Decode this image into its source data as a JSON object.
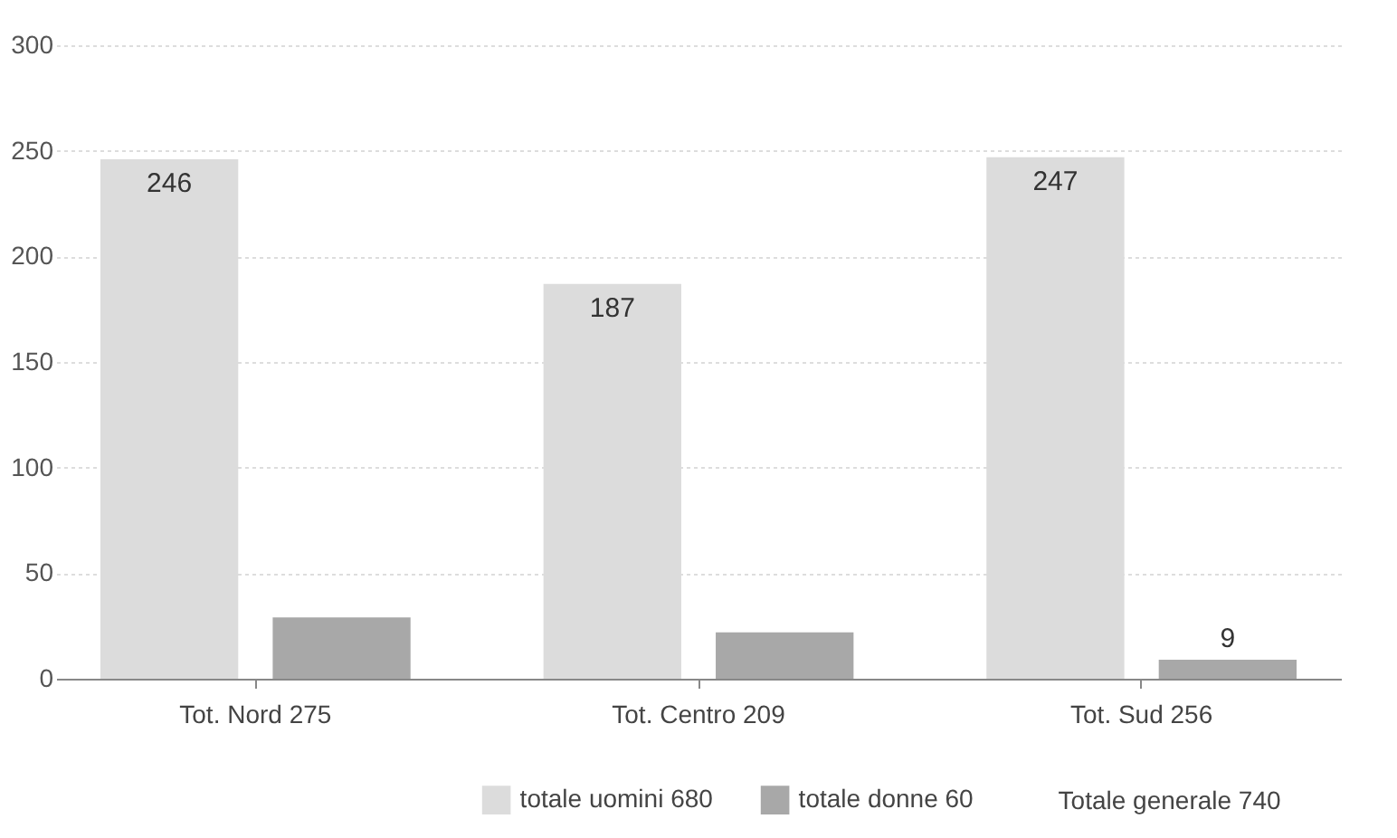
{
  "chart_data": {
    "type": "bar",
    "categories": [
      "Tot. Nord 275",
      "Tot. Centro 209",
      "Tot. Sud 256"
    ],
    "series": [
      {
        "name": "totale uomini 680",
        "color": "#dcdcdc",
        "values": [
          246,
          187,
          247
        ],
        "value_labels": [
          "246",
          "187",
          "247"
        ]
      },
      {
        "name": "totale donne 60",
        "color": "#a8a8a8",
        "values": [
          29,
          22,
          9
        ],
        "value_labels": [
          null,
          null,
          "9"
        ]
      }
    ],
    "ylim": [
      0,
      300
    ],
    "yticks": [
      0,
      50,
      100,
      150,
      200,
      250,
      300
    ],
    "grid": "y",
    "legend": "bottom",
    "annotations": [
      "Totale generale 740"
    ]
  }
}
